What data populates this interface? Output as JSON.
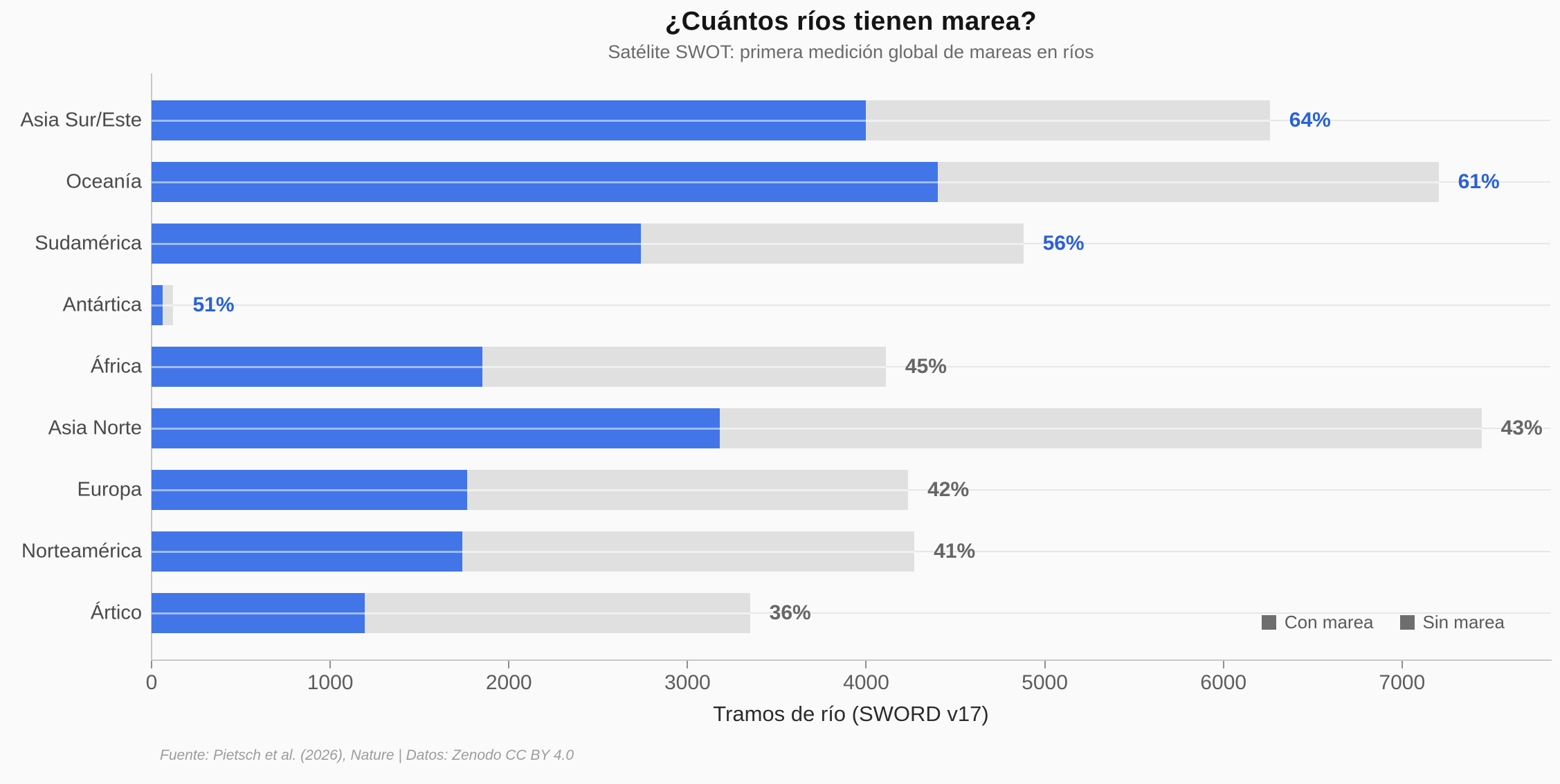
{
  "chart_data": {
    "type": "bar",
    "orientation": "horizontal",
    "stacked": true,
    "title": "¿Cuántos ríos tienen marea?",
    "subtitle": "Satélite SWOT: primera medición global de mareas en ríos",
    "xlabel": "Tramos de río (SWORD v17)",
    "categories": [
      "Asia Sur/Este",
      "Oceanía",
      "Sudamérica",
      "Antártica",
      "África",
      "Asia Norte",
      "Europa",
      "Norteamérica",
      "Ártico"
    ],
    "series": [
      {
        "name": "Con marea",
        "values": [
          4000,
          4400,
          2740,
          62,
          1850,
          3180,
          1765,
          1740,
          1195
        ]
      },
      {
        "name": "Sin marea",
        "values": [
          2260,
          2805,
          2140,
          60,
          2260,
          4265,
          2470,
          2530,
          2155
        ]
      }
    ],
    "percent_labels": [
      "64%",
      "61%",
      "56%",
      "51%",
      "45%",
      "43%",
      "42%",
      "41%",
      "36%"
    ],
    "xticks": [
      0,
      1000,
      2000,
      3000,
      4000,
      5000,
      6000,
      7000
    ],
    "xlim": [
      0,
      7830
    ],
    "grid": "horizontal",
    "legend_position": "bottom-right",
    "colors": {
      "con_marea": "#4276e8",
      "sin_marea": "#e0e0e0",
      "percent_high": "#2a61d8",
      "percent_low": "#666666",
      "legend_swatch": "#6e6e6e"
    }
  },
  "footer": {
    "text": "Fuente: Pietsch et al. (2026), Nature | Datos: Zenodo CC BY 4.0"
  }
}
